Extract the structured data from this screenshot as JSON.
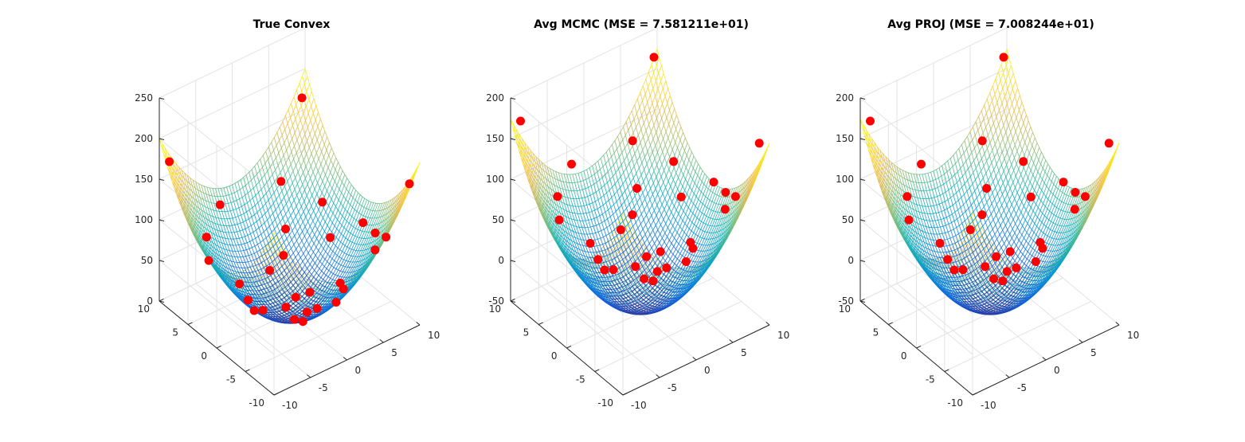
{
  "chart_data": [
    {
      "type": "surface3d",
      "title": "True Convex",
      "xlim": [
        -10,
        10
      ],
      "ylim": [
        -10,
        10
      ],
      "zlim": [
        0,
        250
      ],
      "xticks": [
        -10,
        -5,
        0,
        5,
        10
      ],
      "yticks": [
        -10,
        -5,
        0,
        5,
        10
      ],
      "zticks": [
        0,
        50,
        100,
        150,
        200,
        250
      ],
      "grid": true,
      "colormap": "parula",
      "surface": {
        "function": "z = x^2 + y^2",
        "peak_z": 200
      },
      "marker_color": "#ff0000",
      "points": [
        [
          9.1,
          9.4,
          171.2
        ],
        [
          7.8,
          4.2,
          78.5
        ],
        [
          9.6,
          -8.7,
          167.9
        ],
        [
          8.9,
          -1.5,
          81.5
        ],
        [
          -2.3,
          9.2,
          89.9
        ],
        [
          -9.1,
          9.4,
          171.2
        ],
        [
          4.1,
          5.9,
          51.6
        ],
        [
          -8.4,
          -9.6,
          162.7
        ],
        [
          -4.7,
          0.2,
          22.1
        ],
        [
          5.6,
          -9.7,
          125.4
        ],
        [
          0.4,
          -8.9,
          79.4
        ],
        [
          -3.8,
          3.9,
          29.6
        ],
        [
          6.7,
          -6.4,
          85.8
        ],
        [
          -7.5,
          -2.3,
          61.5
        ],
        [
          1.8,
          1.2,
          4.7
        ],
        [
          -0.6,
          -3.1,
          10.0
        ],
        [
          2.6,
          -4.8,
          29.8
        ],
        [
          -6.2,
          6.6,
          82.0
        ],
        [
          3.1,
          0.4,
          9.8
        ],
        [
          -1.9,
          -7.2,
          55.4
        ],
        [
          4.9,
          -2.6,
          30.8
        ],
        [
          -5.3,
          -6.1,
          65.3
        ],
        [
          0.9,
          4.6,
          22.0
        ],
        [
          7.0,
          1.8,
          52.2
        ],
        [
          -8.8,
          2.9,
          85.8
        ],
        [
          5.2,
          8.1,
          92.7
        ],
        [
          -3.2,
          -4.9,
          34.2
        ],
        [
          1.3,
          -1.4,
          3.6
        ],
        [
          -2.8,
          1.1,
          9.0
        ],
        [
          8.3,
          -4.4,
          88.2
        ]
      ]
    },
    {
      "type": "surface3d",
      "title": "Avg MCMC (MSE = 7.581211e+01)",
      "xlim": [
        -10,
        10
      ],
      "ylim": [
        -10,
        10
      ],
      "zlim": [
        -50,
        200
      ],
      "xticks": [
        -10,
        -5,
        0,
        5,
        10
      ],
      "yticks": [
        -10,
        -5,
        0,
        5,
        10
      ],
      "zticks": [
        -50,
        0,
        50,
        100,
        150,
        200
      ],
      "grid": true,
      "colormap": "parula",
      "surface": {
        "function": "z = 1.07*(x^2 + y^2) - 40",
        "peak_z": 173
      },
      "marker_color": "#ff0000",
      "points": [
        [
          9.1,
          9.4,
          171.2
        ],
        [
          7.8,
          4.2,
          78.5
        ],
        [
          9.6,
          -8.7,
          167.9
        ],
        [
          8.9,
          -1.5,
          81.5
        ],
        [
          -2.3,
          9.2,
          89.9
        ],
        [
          -9.1,
          9.4,
          171.2
        ],
        [
          4.1,
          5.9,
          51.6
        ],
        [
          -8.4,
          -9.6,
          162.7
        ],
        [
          -4.7,
          0.2,
          22.1
        ],
        [
          5.6,
          -9.7,
          125.4
        ],
        [
          0.4,
          -8.9,
          79.4
        ],
        [
          -3.8,
          3.9,
          29.6
        ],
        [
          6.7,
          -6.4,
          85.8
        ],
        [
          -7.5,
          -2.3,
          61.5
        ],
        [
          1.8,
          1.2,
          4.7
        ],
        [
          -0.6,
          -3.1,
          10.0
        ],
        [
          2.6,
          -4.8,
          29.8
        ],
        [
          -6.2,
          6.6,
          82.0
        ],
        [
          3.1,
          0.4,
          9.8
        ],
        [
          -1.9,
          -7.2,
          55.4
        ],
        [
          4.9,
          -2.6,
          30.8
        ],
        [
          -5.3,
          -6.1,
          65.3
        ],
        [
          0.9,
          4.6,
          22.0
        ],
        [
          7.0,
          1.8,
          52.2
        ],
        [
          -8.8,
          2.9,
          85.8
        ],
        [
          5.2,
          8.1,
          92.7
        ],
        [
          -3.2,
          -4.9,
          34.2
        ],
        [
          1.3,
          -1.4,
          3.6
        ],
        [
          -2.8,
          1.1,
          9.0
        ],
        [
          8.3,
          -4.4,
          88.2
        ]
      ]
    },
    {
      "type": "surface3d",
      "title": "Avg PROJ (MSE = 7.008244e+01)",
      "xlim": [
        -10,
        10
      ],
      "ylim": [
        -10,
        10
      ],
      "zlim": [
        -50,
        200
      ],
      "xticks": [
        -10,
        -5,
        0,
        5,
        10
      ],
      "yticks": [
        -10,
        -5,
        0,
        5,
        10
      ],
      "zticks": [
        -50,
        0,
        50,
        100,
        150,
        200
      ],
      "grid": true,
      "colormap": "parula",
      "surface": {
        "function": "z = 1.07*(x^2 + y^2) - 40",
        "peak_z": 173
      },
      "marker_color": "#ff0000",
      "points": [
        [
          9.1,
          9.4,
          171.2
        ],
        [
          7.8,
          4.2,
          78.5
        ],
        [
          9.6,
          -8.7,
          167.9
        ],
        [
          8.9,
          -1.5,
          81.5
        ],
        [
          -2.3,
          9.2,
          89.9
        ],
        [
          -9.1,
          9.4,
          171.2
        ],
        [
          4.1,
          5.9,
          51.6
        ],
        [
          -8.4,
          -9.6,
          162.7
        ],
        [
          -4.7,
          0.2,
          22.1
        ],
        [
          5.6,
          -9.7,
          125.4
        ],
        [
          0.4,
          -8.9,
          79.4
        ],
        [
          -3.8,
          3.9,
          29.6
        ],
        [
          6.7,
          -6.4,
          85.8
        ],
        [
          -7.5,
          -2.3,
          61.5
        ],
        [
          1.8,
          1.2,
          4.7
        ],
        [
          -0.6,
          -3.1,
          10.0
        ],
        [
          2.6,
          -4.8,
          29.8
        ],
        [
          -6.2,
          6.6,
          82.0
        ],
        [
          3.1,
          0.4,
          9.8
        ],
        [
          -1.9,
          -7.2,
          55.4
        ],
        [
          4.9,
          -2.6,
          30.8
        ],
        [
          -5.3,
          -6.1,
          65.3
        ],
        [
          0.9,
          4.6,
          22.0
        ],
        [
          7.0,
          1.8,
          52.2
        ],
        [
          -8.8,
          2.9,
          85.8
        ],
        [
          5.2,
          8.1,
          92.7
        ],
        [
          -3.2,
          -4.9,
          34.2
        ],
        [
          1.3,
          -1.4,
          3.6
        ],
        [
          -2.8,
          1.1,
          9.0
        ],
        [
          8.3,
          -4.4,
          88.2
        ]
      ]
    }
  ]
}
